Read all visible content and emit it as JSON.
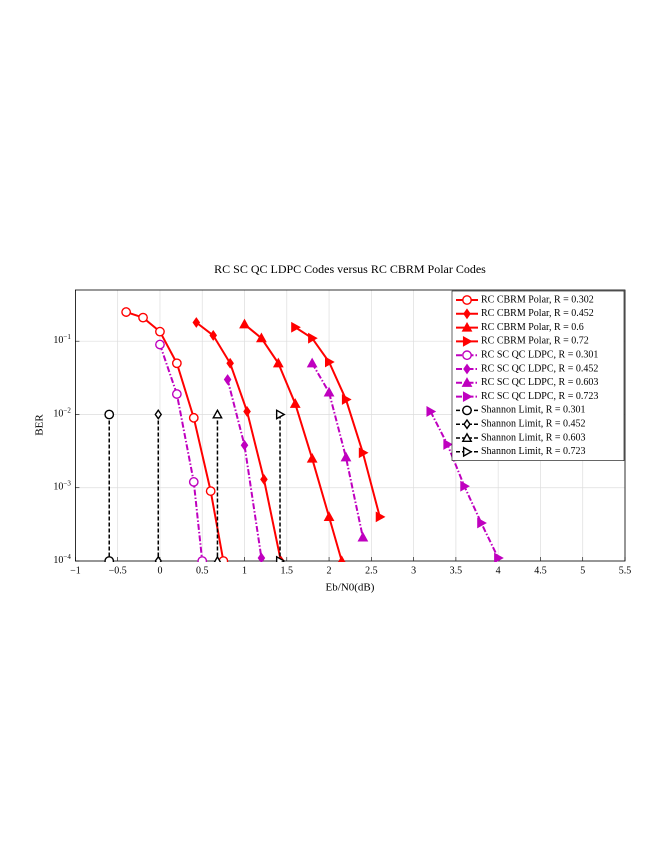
{
  "chart_data": {
    "type": "line",
    "title": "RC SC QC LDPC Codes versus RC CBRM Polar Codes",
    "x_label": "Eb/N0(dB)",
    "y_label": "BER",
    "log_y": true,
    "grid": true,
    "legend": "upper right",
    "xlim": [
      -1,
      5.5
    ],
    "ylim": [
      0.0001,
      0.5
    ],
    "xticks": [
      {
        "value": -1,
        "label": "−1"
      },
      {
        "value": -0.5,
        "label": "−0.5"
      },
      0,
      0.5,
      1,
      1.5,
      2,
      2.5,
      3,
      3.5,
      4,
      4.5,
      5,
      5.5
    ],
    "yticks": [
      {
        "value": 0.0001,
        "label": "10",
        "exponent": "−4"
      },
      {
        "value": 0.001,
        "label": "10",
        "exponent": "−3"
      },
      {
        "value": 0.01,
        "label": "10",
        "exponent": "−2"
      },
      {
        "value": 0.1,
        "label": "10",
        "exponent": "−1"
      }
    ],
    "series": [
      {
        "name": "RC CBRM Polar, R = 0.302",
        "color": "#ff0000",
        "line_style": "solid",
        "marker": "circle",
        "x": [
          -0.4,
          -0.2,
          0,
          0.2,
          0.4,
          0.6,
          0.75
        ],
        "values": [
          0.25,
          0.21,
          0.135,
          0.05,
          0.009,
          0.0009,
          0.0001
        ]
      },
      {
        "name": "RC CBRM Polar, R = 0.452",
        "color": "#ff0000",
        "line_style": "solid",
        "marker": "diamond",
        "x": [
          0.43,
          0.63,
          0.83,
          1.03,
          1.23,
          1.43
        ],
        "values": [
          0.18,
          0.12,
          0.05,
          0.011,
          0.0013,
          0.0001
        ]
      },
      {
        "name": "RC CBRM Polar, R = 0.6",
        "color": "#ff0000",
        "line_style": "solid",
        "marker": "triangle-up",
        "x": [
          1,
          1.2,
          1.4,
          1.6,
          1.8,
          2.0,
          2.15
        ],
        "values": [
          0.17,
          0.11,
          0.05,
          0.014,
          0.0025,
          0.0004,
          0.0001
        ]
      },
      {
        "name": "RC CBRM Polar, R = 0.72",
        "color": "#ff0000",
        "line_style": "solid",
        "marker": "triangle-right",
        "x": [
          1.6,
          1.8,
          2.0,
          2.2,
          2.4,
          2.6
        ],
        "values": [
          0.155,
          0.11,
          0.052,
          0.016,
          0.003,
          0.0004
        ]
      },
      {
        "name": "RC SC QC LDPC, R = 0.301",
        "color": "#bf00bf",
        "line_style": "dashdot",
        "marker": "circle",
        "x": [
          0,
          0.2,
          0.4,
          0.5
        ],
        "values": [
          0.09,
          0.019,
          0.0012,
          0.0001
        ]
      },
      {
        "name": "RC SC QC LDPC, R = 0.452",
        "color": "#bf00bf",
        "line_style": "dashdot",
        "marker": "diamond",
        "x": [
          0.8,
          1.0,
          1.2
        ],
        "values": [
          0.03,
          0.0038,
          0.00011
        ]
      },
      {
        "name": "RC SC QC LDPC, R = 0.603",
        "color": "#bf00bf",
        "line_style": "dashdot",
        "marker": "triangle-up",
        "x": [
          1.8,
          2.0,
          2.2,
          2.4
        ],
        "values": [
          0.05,
          0.02,
          0.0026,
          0.00021
        ]
      },
      {
        "name": "RC SC QC LDPC, R = 0.723",
        "color": "#bf00bf",
        "line_style": "dashdot",
        "marker": "triangle-right",
        "x": [
          3.2,
          3.4,
          3.6,
          3.8,
          4.0
        ],
        "values": [
          0.011,
          0.0039,
          0.00105,
          0.00033,
          0.00011
        ]
      },
      {
        "name": "Shannon Limit, R = 0.301",
        "color": "#000000",
        "line_style": "dashed",
        "marker": "circle",
        "x": [
          -0.6,
          -0.6
        ],
        "values": [
          0.01,
          0.0001
        ]
      },
      {
        "name": "Shannon Limit, R = 0.452",
        "color": "#000000",
        "line_style": "dashed",
        "marker": "diamond",
        "x": [
          -0.02,
          -0.02
        ],
        "values": [
          0.01,
          0.0001
        ]
      },
      {
        "name": "Shannon Limit, R = 0.603",
        "color": "#000000",
        "line_style": "dashed",
        "marker": "triangle-up",
        "x": [
          0.68,
          0.68
        ],
        "values": [
          0.01,
          0.0001
        ]
      },
      {
        "name": "Shannon Limit, R = 0.723",
        "color": "#000000",
        "line_style": "dashed",
        "marker": "triangle-right",
        "x": [
          1.42,
          1.42
        ],
        "values": [
          0.01,
          0.0001
        ]
      }
    ]
  }
}
